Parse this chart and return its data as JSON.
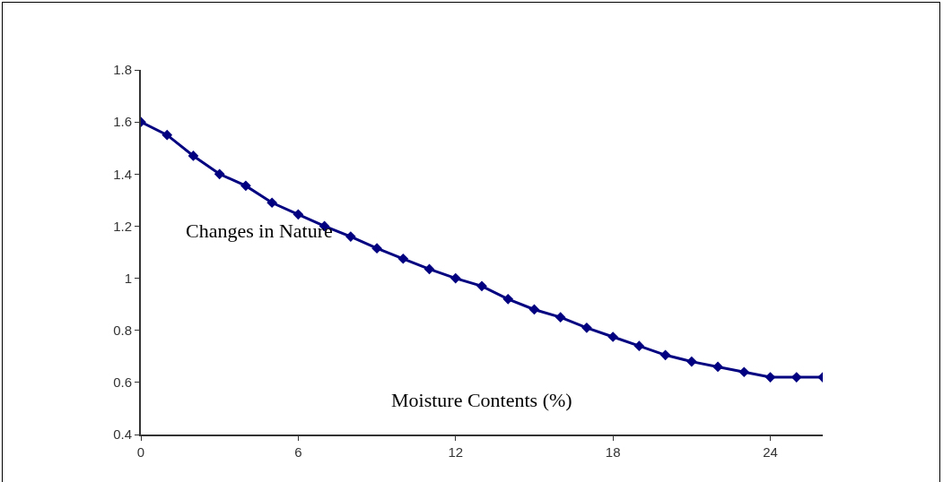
{
  "chart_data": {
    "type": "line",
    "xlabel": "Moisture Contents (%)",
    "ylabel": "Changes in Nature",
    "x": [
      0,
      1,
      2,
      3,
      4,
      5,
      6,
      7,
      8,
      9,
      10,
      11,
      12,
      13,
      14,
      15,
      16,
      17,
      18,
      19,
      20,
      21,
      22,
      23,
      24,
      25,
      26
    ],
    "series": [
      {
        "color": "#000080",
        "values": [
          1.6,
          1.55,
          1.47,
          1.4,
          1.355,
          1.29,
          1.245,
          1.2,
          1.16,
          1.115,
          1.075,
          1.035,
          1.0,
          0.97,
          0.92,
          0.88,
          0.85,
          0.81,
          0.775,
          0.74,
          0.705,
          0.68,
          0.66,
          0.64,
          0.62,
          0.62,
          0.62
        ]
      }
    ],
    "xlim": [
      0,
      26
    ],
    "xticks": [
      0,
      6,
      12,
      18,
      24
    ],
    "ylim": [
      0.4,
      1.8
    ],
    "yticks": [
      0.4,
      0.6,
      0.8,
      1,
      1.2,
      1.4,
      1.6,
      1.8
    ],
    "grid": false,
    "marker": "diamond",
    "line_style": "solid"
  }
}
